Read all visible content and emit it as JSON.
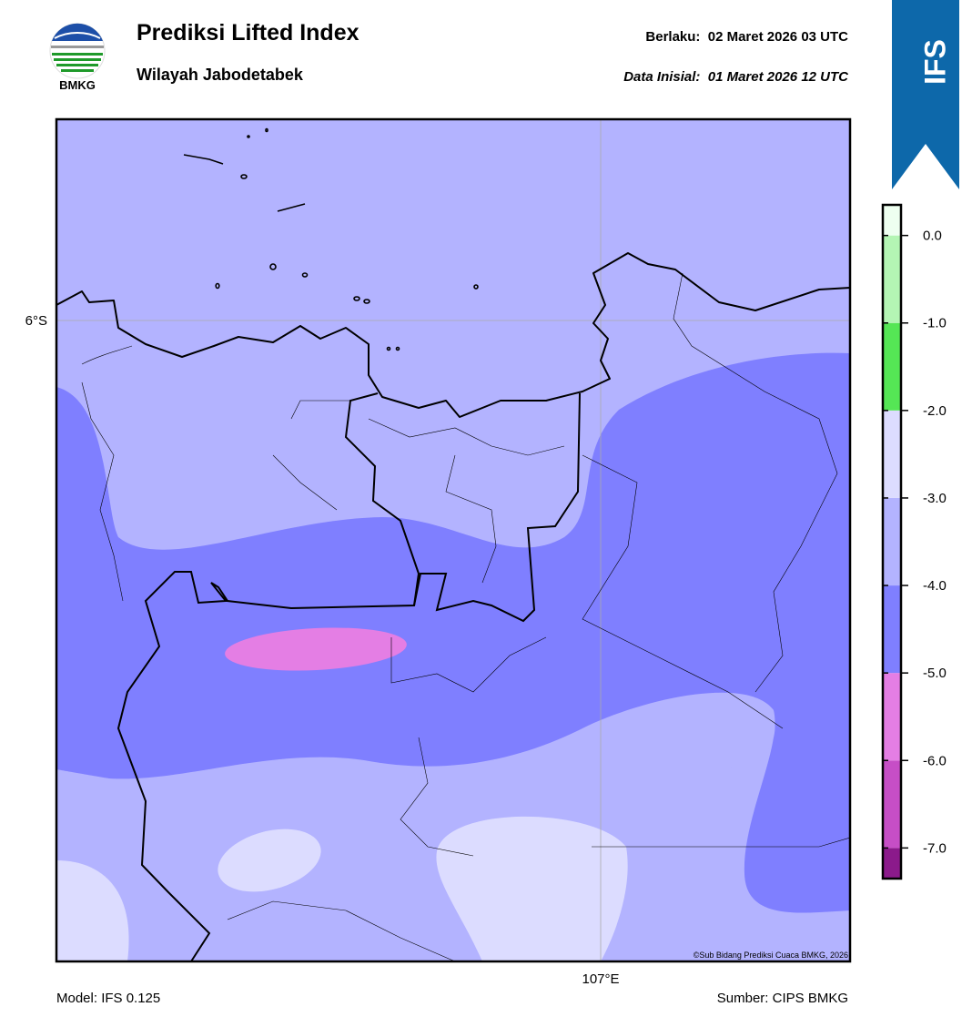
{
  "header": {
    "logo_text": "BMKG",
    "title": "Prediksi Lifted Index",
    "subtitle": "Wilayah Jabodetabek",
    "valid": "Berlaku:  02 Maret 2026 03 UTC",
    "initial": "Data Inisial:  01 Maret 2026 12 UTC",
    "badge": "IFS"
  },
  "map": {
    "lat_label": "6°S",
    "lon_label": "107°E",
    "credit": "©Sub Bidang Prediksi Cuaca BMKG, 2026"
  },
  "colorbar": {
    "boundaries": [
      -7.35,
      -7,
      -6,
      -5,
      -4,
      -3,
      -2,
      -1,
      0,
      0.35
    ],
    "colors": [
      "#8b1a8b",
      "#c64ec6",
      "#e47ee4",
      "#7f7fff",
      "#b3b3ff",
      "#dcdcff",
      "#55e655",
      "#b4f5b4",
      "#eefff0"
    ],
    "ticks": [
      {
        "value": 0,
        "label": "0.0"
      },
      {
        "value": -1,
        "label": "-1.0"
      },
      {
        "value": -2,
        "label": "-2.0"
      },
      {
        "value": -3,
        "label": "-3.0"
      },
      {
        "value": -4,
        "label": "-4.0"
      },
      {
        "value": -5,
        "label": "-5.0"
      },
      {
        "value": -6,
        "label": "-6.0"
      },
      {
        "value": -7,
        "label": "-7.0"
      }
    ]
  },
  "footer": {
    "model": "Model: IFS 0.125",
    "source": "Sumber: CIPS BMKG"
  }
}
